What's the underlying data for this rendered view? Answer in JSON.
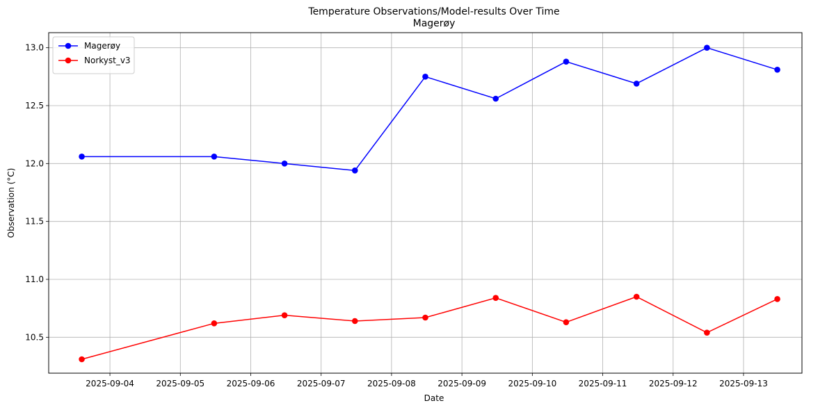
{
  "chart_data": {
    "type": "line",
    "title": "Temperature Observations/Model-results Over Time",
    "subtitle": "Magerøy",
    "xlabel": "Date",
    "ylabel": "Observation (°C)",
    "grid": true,
    "legend_position": "top-left",
    "x_range": [
      -0.47,
      10.23
    ],
    "ylim": [
      10.19,
      13.13
    ],
    "x_ticks": [
      {
        "pos": 0.4,
        "label": "2025-09-04"
      },
      {
        "pos": 1.4,
        "label": "2025-09-05"
      },
      {
        "pos": 2.4,
        "label": "2025-09-06"
      },
      {
        "pos": 3.4,
        "label": "2025-09-07"
      },
      {
        "pos": 4.4,
        "label": "2025-09-08"
      },
      {
        "pos": 5.4,
        "label": "2025-09-09"
      },
      {
        "pos": 6.4,
        "label": "2025-09-10"
      },
      {
        "pos": 7.4,
        "label": "2025-09-11"
      },
      {
        "pos": 8.4,
        "label": "2025-09-12"
      },
      {
        "pos": 9.4,
        "label": "2025-09-13"
      }
    ],
    "y_ticks": [
      {
        "value": 10.5,
        "label": "10.5"
      },
      {
        "value": 11.0,
        "label": "11.0"
      },
      {
        "value": 11.5,
        "label": "11.5"
      },
      {
        "value": 12.0,
        "label": "12.0"
      },
      {
        "value": 12.5,
        "label": "12.5"
      },
      {
        "value": 13.0,
        "label": "13.0"
      }
    ],
    "series": [
      {
        "name": "Magerøy",
        "color": "#0000ff",
        "x": [
          0.0,
          1.88,
          2.88,
          3.88,
          4.88,
          5.88,
          6.88,
          7.88,
          8.88,
          9.88
        ],
        "values": [
          12.06,
          12.06,
          12.0,
          11.94,
          12.75,
          12.56,
          12.88,
          12.69,
          13.0,
          12.81
        ]
      },
      {
        "name": "Norkyst_v3",
        "color": "#ff0000",
        "x": [
          0.0,
          1.88,
          2.88,
          3.88,
          4.88,
          5.88,
          6.88,
          7.88,
          8.88,
          9.88
        ],
        "values": [
          10.31,
          10.62,
          10.69,
          10.64,
          10.67,
          10.84,
          10.63,
          10.85,
          10.54,
          10.83
        ]
      }
    ]
  }
}
